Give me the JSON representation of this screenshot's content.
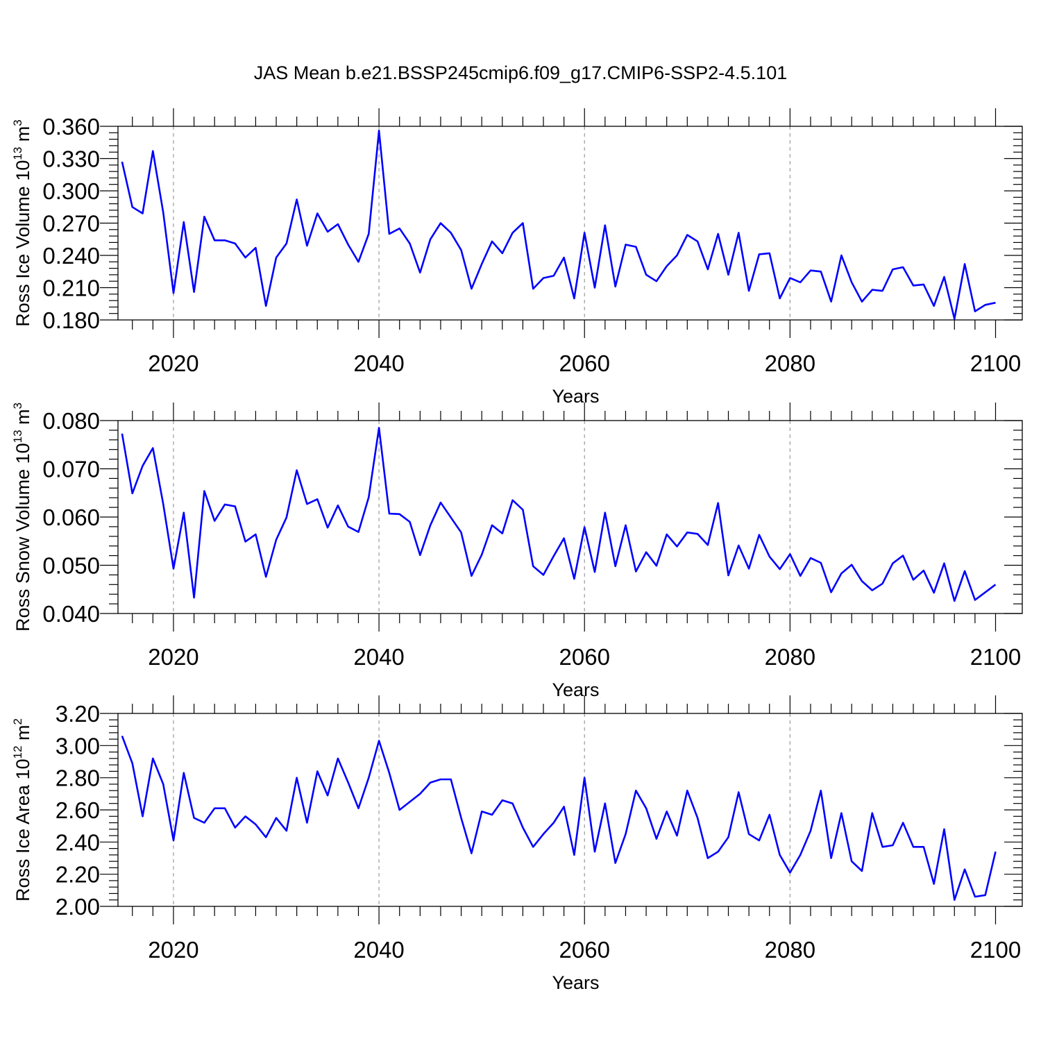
{
  "figure": {
    "title": "JAS Mean b.e21.BSSP245cmip6.f09_g17.CMIP6-SSP2-4.5.101",
    "line_color": "#0000ff"
  },
  "chart_data": [
    {
      "type": "line",
      "xlabel": "Years",
      "ylabel": "Ross Ice Volume 10",
      "ylabel_exp": "13",
      "ylabel_unit": " m",
      "ylabel_unit_exp": "3",
      "xlim": [
        2015,
        2100
      ],
      "ylim": [
        0.18,
        0.36
      ],
      "x_ticks": [
        2020,
        2040,
        2060,
        2080,
        2100
      ],
      "y_ticks": [
        "0.180",
        "0.210",
        "0.240",
        "0.270",
        "0.300",
        "0.330",
        "0.360"
      ],
      "grid": "vertical-dashed",
      "series": [
        {
          "x_start": 2015,
          "values": [
            0.327,
            0.285,
            0.279,
            0.337,
            0.28,
            0.205,
            0.271,
            0.206,
            0.276,
            0.254,
            0.254,
            0.251,
            0.238,
            0.247,
            0.193,
            0.238,
            0.251,
            0.292,
            0.249,
            0.279,
            0.262,
            0.269,
            0.25,
            0.234,
            0.26,
            0.356,
            0.26,
            0.265,
            0.251,
            0.224,
            0.255,
            0.27,
            0.261,
            0.245,
            0.209,
            0.232,
            0.253,
            0.242,
            0.261,
            0.27,
            0.209,
            0.219,
            0.221,
            0.238,
            0.2,
            0.261,
            0.21,
            0.268,
            0.211,
            0.25,
            0.248,
            0.222,
            0.216,
            0.23,
            0.24,
            0.259,
            0.253,
            0.227,
            0.26,
            0.222,
            0.261,
            0.207,
            0.241,
            0.242,
            0.2,
            0.219,
            0.215,
            0.226,
            0.225,
            0.197,
            0.24,
            0.215,
            0.197,
            0.208,
            0.207,
            0.227,
            0.229,
            0.212,
            0.213,
            0.193,
            0.22,
            0.181,
            0.232,
            0.188,
            0.194,
            0.196
          ]
        }
      ]
    },
    {
      "type": "line",
      "xlabel": "Years",
      "ylabel": "Ross Snow Volume 10",
      "ylabel_exp": "13",
      "ylabel_unit": " m",
      "ylabel_unit_exp": "3",
      "xlim": [
        2015,
        2100
      ],
      "ylim": [
        0.04,
        0.08
      ],
      "x_ticks": [
        2020,
        2040,
        2060,
        2080,
        2100
      ],
      "y_ticks": [
        "0.040",
        "0.050",
        "0.060",
        "0.070",
        "0.080"
      ],
      "grid": "vertical-dashed",
      "series": [
        {
          "x_start": 2015,
          "values": [
            0.0773,
            0.0649,
            0.0706,
            0.0743,
            0.0627,
            0.0493,
            0.0609,
            0.0433,
            0.0654,
            0.0592,
            0.0626,
            0.0622,
            0.0549,
            0.0564,
            0.0476,
            0.0553,
            0.0599,
            0.0697,
            0.0627,
            0.0637,
            0.0578,
            0.0624,
            0.058,
            0.0569,
            0.0641,
            0.0785,
            0.0607,
            0.0606,
            0.059,
            0.0521,
            0.0583,
            0.063,
            0.0599,
            0.0568,
            0.0478,
            0.0522,
            0.0583,
            0.0566,
            0.0635,
            0.0615,
            0.0498,
            0.048,
            0.0519,
            0.0556,
            0.0472,
            0.0579,
            0.0486,
            0.0609,
            0.0498,
            0.0583,
            0.0487,
            0.0527,
            0.0499,
            0.0564,
            0.0539,
            0.0568,
            0.0565,
            0.0542,
            0.0629,
            0.0479,
            0.0541,
            0.0493,
            0.0563,
            0.0518,
            0.0492,
            0.0523,
            0.0478,
            0.0515,
            0.0505,
            0.0444,
            0.0483,
            0.0501,
            0.0467,
            0.0448,
            0.0462,
            0.0504,
            0.052,
            0.047,
            0.0489,
            0.0443,
            0.0504,
            0.0426,
            0.0488,
            0.0428,
            0.0444,
            0.046
          ]
        }
      ]
    },
    {
      "type": "line",
      "xlabel": "Years",
      "ylabel": "Ross Ice Area 10",
      "ylabel_exp": "12",
      "ylabel_unit": " m",
      "ylabel_unit_exp": "2",
      "xlim": [
        2015,
        2100
      ],
      "ylim": [
        2.0,
        3.2
      ],
      "x_ticks": [
        2020,
        2040,
        2060,
        2080,
        2100
      ],
      "y_ticks": [
        "2.00",
        "2.20",
        "2.40",
        "2.60",
        "2.80",
        "3.00",
        "3.20"
      ],
      "grid": "vertical-dashed",
      "series": [
        {
          "x_start": 2015,
          "values": [
            3.06,
            2.89,
            2.56,
            2.92,
            2.76,
            2.41,
            2.83,
            2.55,
            2.52,
            2.61,
            2.61,
            2.49,
            2.56,
            2.51,
            2.43,
            2.55,
            2.47,
            2.8,
            2.52,
            2.84,
            2.69,
            2.92,
            2.77,
            2.61,
            2.8,
            3.03,
            2.83,
            2.6,
            2.65,
            2.7,
            2.77,
            2.79,
            2.79,
            2.55,
            2.33,
            2.59,
            2.57,
            2.66,
            2.64,
            2.49,
            2.37,
            2.45,
            2.52,
            2.62,
            2.32,
            2.8,
            2.34,
            2.64,
            2.27,
            2.45,
            2.72,
            2.61,
            2.42,
            2.59,
            2.44,
            2.72,
            2.55,
            2.3,
            2.34,
            2.43,
            2.71,
            2.45,
            2.41,
            2.57,
            2.32,
            2.21,
            2.32,
            2.47,
            2.72,
            2.3,
            2.58,
            2.28,
            2.22,
            2.58,
            2.37,
            2.38,
            2.52,
            2.37,
            2.37,
            2.14,
            2.48,
            2.04,
            2.23,
            2.06,
            2.07,
            2.34
          ]
        }
      ]
    }
  ]
}
